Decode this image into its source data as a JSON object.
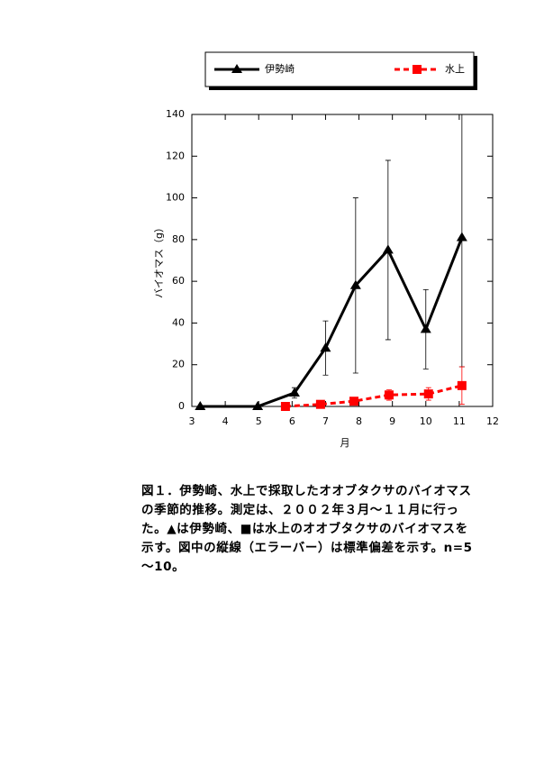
{
  "chart_data": {
    "type": "line",
    "xlabel": "月",
    "ylabel": "バイオマス（g）",
    "xlim": [
      3,
      12
    ],
    "xticks": [
      3,
      4,
      5,
      6,
      7,
      8,
      9,
      10,
      11,
      12
    ],
    "ylim": [
      0,
      140
    ],
    "yticks": [
      0,
      20,
      40,
      60,
      80,
      100,
      120,
      140
    ],
    "series": [
      {
        "name": "伊勢崎",
        "color": "#000000",
        "marker": "triangle",
        "dash": false,
        "x": [
          3.25,
          4.97,
          6.07,
          7.0,
          7.9,
          8.87,
          10.0,
          11.08
        ],
        "values": [
          0,
          0,
          6.5,
          28,
          58,
          75,
          37,
          81
        ],
        "errors": [
          0,
          0,
          2.5,
          13,
          42,
          43,
          19,
          62
        ]
      },
      {
        "name": "水上",
        "color": "#ff0000",
        "marker": "square",
        "dash": true,
        "x": [
          5.8,
          6.85,
          7.85,
          8.9,
          10.08,
          11.08
        ],
        "values": [
          0,
          1,
          2.5,
          5.5,
          6,
          10
        ],
        "errors": [
          0,
          0,
          1,
          2.5,
          3,
          9
        ]
      }
    ]
  },
  "caption": [
    "図１．伊勢崎、水上で採取したオオブタクサのバイオマス",
    "の季節的推移。測定は、２００２年３月～１１月に行っ",
    "た。▲は伊勢崎、■は水上のオオブタクサのバイオマスを",
    "示す。図中の縦線（エラーバー）は標準偏差を示す。n=5",
    "～10。"
  ]
}
